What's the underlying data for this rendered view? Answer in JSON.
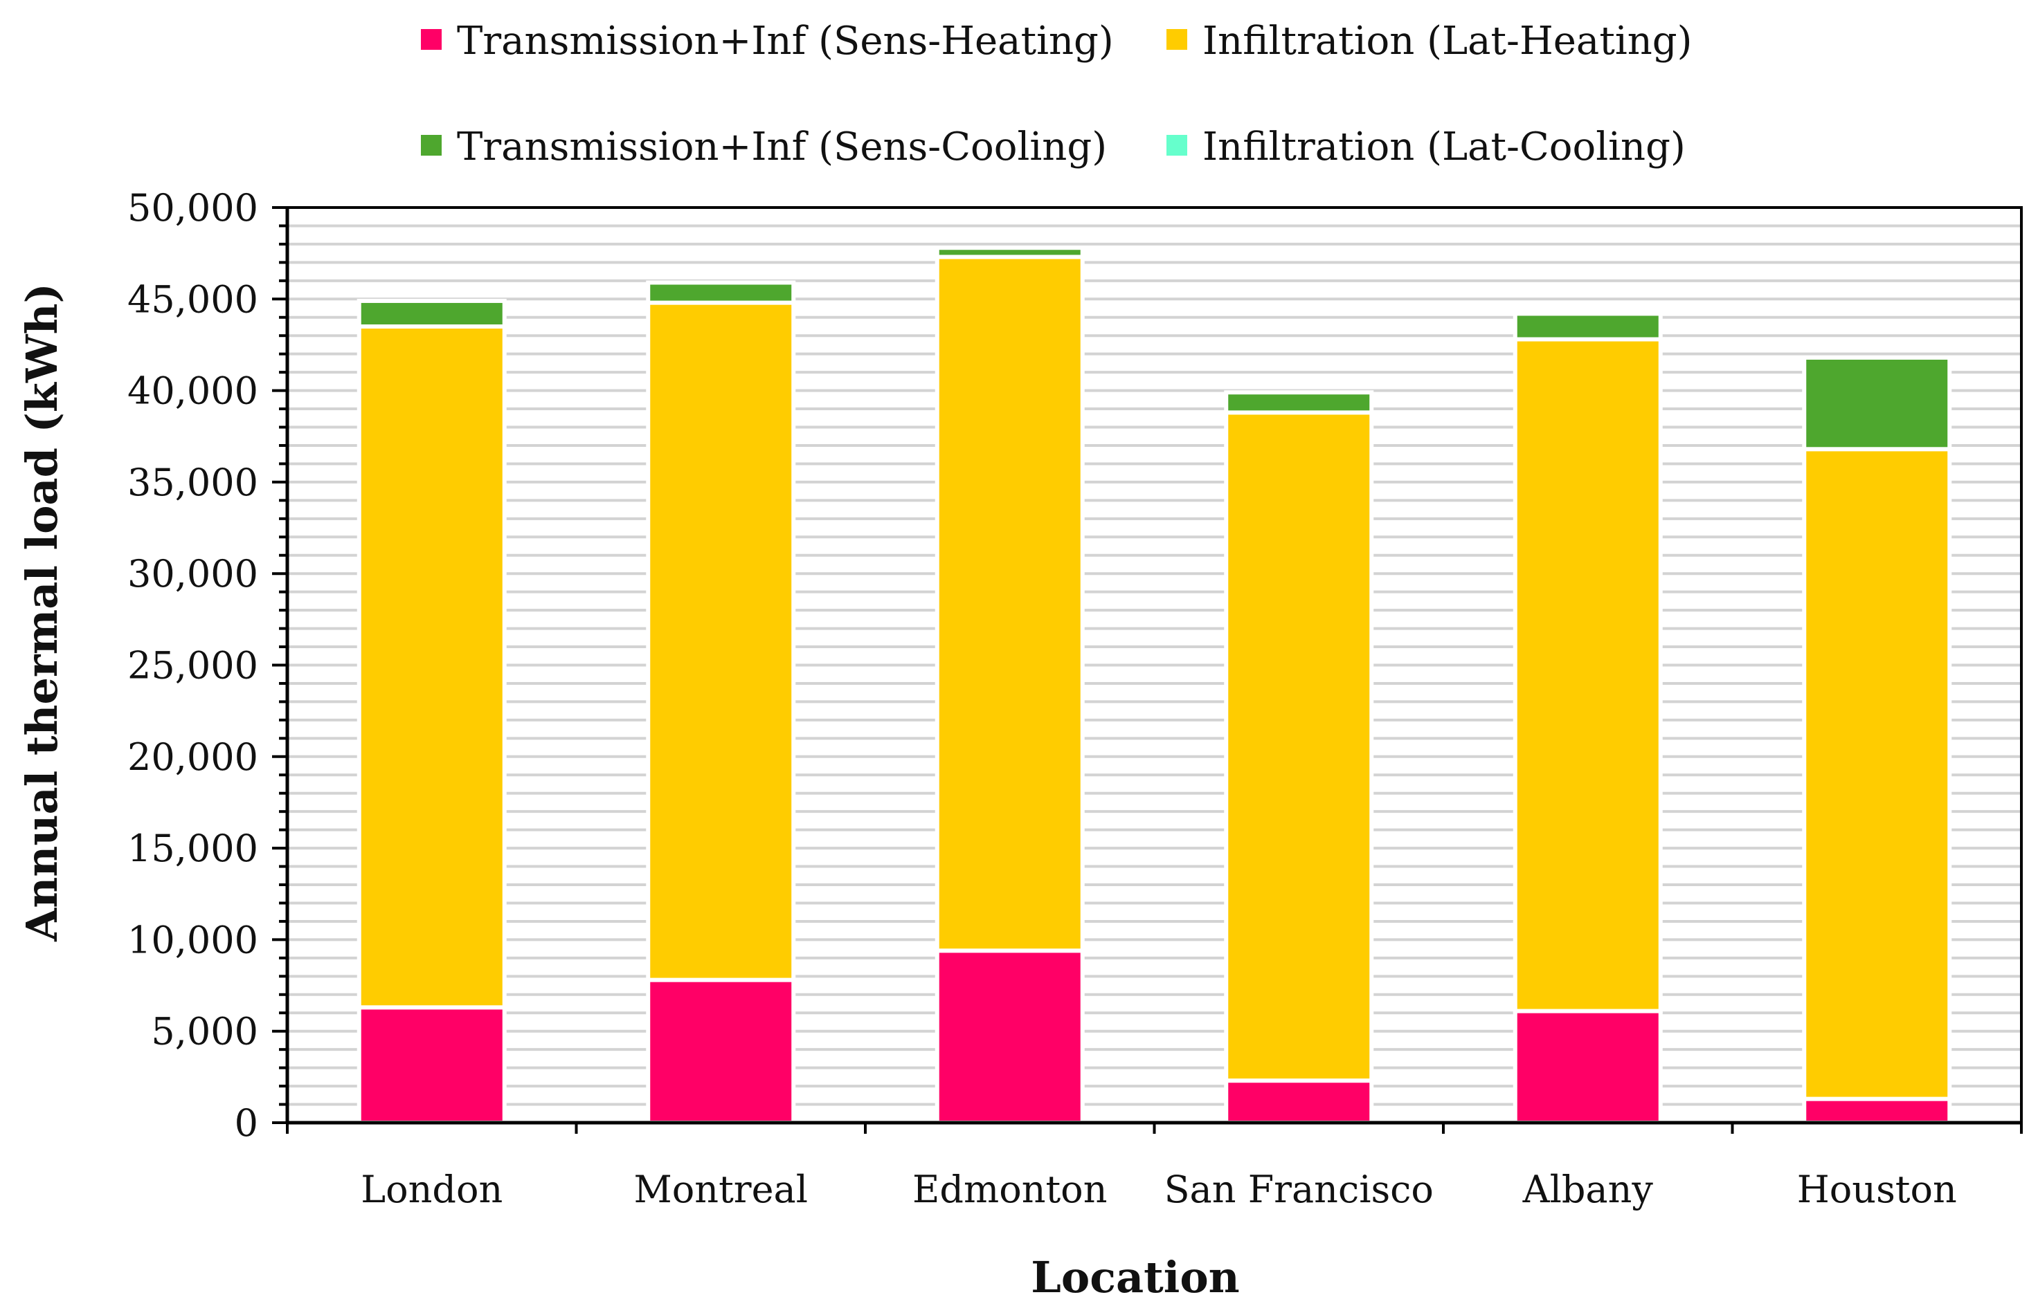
{
  "chart_data": {
    "type": "bar",
    "stacked": true,
    "categories": [
      "London",
      "Montreal",
      "Edmonton",
      "San Francisco",
      "Albany",
      "Houston"
    ],
    "series": [
      {
        "name": "Transmission+Inf (Sens-Heating)",
        "color": "#ff0066",
        "values": [
          6300,
          7800,
          9400,
          2300,
          6100,
          1300
        ]
      },
      {
        "name": "Infiltration (Lat-Heating)",
        "color": "#ffcc00",
        "values": [
          37200,
          37000,
          37900,
          36500,
          36700,
          35500
        ]
      },
      {
        "name": "Transmission+Inf (Sens-Cooling)",
        "color": "#4ea72e",
        "values": [
          1400,
          1100,
          500,
          1100,
          1400,
          5000
        ]
      },
      {
        "name": "Infiltration (Lat-Cooling)",
        "color": "#66ffcc",
        "values": [
          0,
          0,
          0,
          0,
          0,
          0
        ]
      }
    ],
    "xlabel": "Location",
    "ylabel": "Annual thermal load (kWh)",
    "ylim": [
      0,
      50000
    ],
    "yticks": [
      "0",
      "5,000",
      "10,000",
      "15,000",
      "20,000",
      "25,000",
      "30,000",
      "35,000",
      "40,000",
      "45,000",
      "50,000"
    ],
    "grid": true,
    "legend_position": "top"
  }
}
